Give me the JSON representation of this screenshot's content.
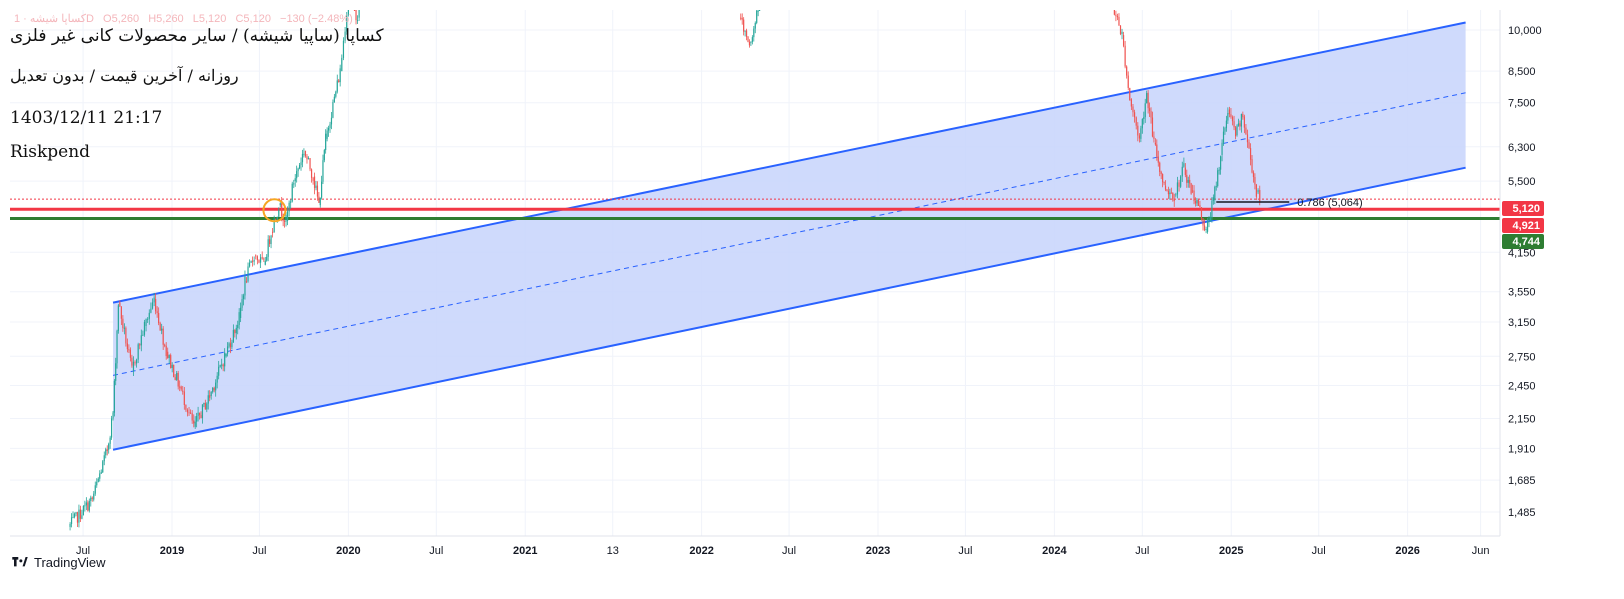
{
  "header": {
    "title": "کساپا (ساپیا شیشه) / سایر محصولات کانی غیر فلزی",
    "subtitle": "روزانه / آخرین قیمت / بدون تعدیل",
    "datetime": "1403/12/11 21:17",
    "author": "Riskpend"
  },
  "ohlc_bar": {
    "symbol": "کساپا شیشه · 1D",
    "open": "O5,260",
    "high": "H5,260",
    "low": "L5,120",
    "close": "C5,120",
    "change": "−130 (−2.48%)"
  },
  "branding": {
    "name": "TradingView"
  },
  "colors": {
    "bull": "#26a69a",
    "bear": "#ef5350",
    "channel_line": "#2962ff",
    "channel_fill": "#c7d4fb",
    "resistance_red": "#f23645",
    "support_green": "#2e7d32",
    "marker": "#f5a623"
  },
  "chart_data": {
    "type": "candlestick",
    "scale": "log",
    "y_ticks": [
      "10,000",
      "8,500",
      "7,500",
      "6,300",
      "5,500",
      "4,150",
      "3,550",
      "3,150",
      "2,750",
      "2,450",
      "2,150",
      "1,910",
      "1,685",
      "1,485"
    ],
    "x_ticks": [
      "Jul",
      "2019",
      "Jul",
      "2020",
      "Jul",
      "2021",
      "13",
      "2022",
      "Jul",
      "2023",
      "Jul",
      "2024",
      "Jul",
      "2025",
      "Jul",
      "2026",
      "Jun"
    ],
    "price_labels": [
      {
        "value": "5,120",
        "color": "#f23645"
      },
      {
        "value": "4,921",
        "color": "#f23645"
      },
      {
        "value": "4,744",
        "color": "#2e7d32"
      }
    ],
    "horizontal_levels": [
      {
        "price": 5120,
        "style": "dotted",
        "color": "#f23645"
      },
      {
        "price": 4921,
        "style": "solid",
        "color": "#f23645"
      },
      {
        "price": 4744,
        "style": "solid",
        "color": "#2e7d32"
      }
    ],
    "channel": {
      "start_date": "2018-09",
      "end_date": "2026-05",
      "upper_start": 3400,
      "upper_end": 10300,
      "lower_start": 1900,
      "lower_end": 5800,
      "mid_start": 2550,
      "mid_end": 7800
    },
    "fib_annotation": {
      "text": "0.786 (5,064)",
      "price": 5064,
      "from_date": "2024-12",
      "to_date": "2025-05"
    },
    "marker_circle": {
      "date": "2019-08",
      "price": 4900
    },
    "price_path": [
      [
        "2018-06-01",
        1400
      ],
      [
        "2018-07-20",
        1560
      ],
      [
        "2018-08-20",
        1900
      ],
      [
        "2018-09-01",
        2200
      ],
      [
        "2018-09-12",
        3400
      ],
      [
        "2018-10-10",
        2600
      ],
      [
        "2018-11-05",
        3100
      ],
      [
        "2018-11-25",
        3450
      ],
      [
        "2018-12-20",
        2800
      ],
      [
        "2019-01-20",
        2400
      ],
      [
        "2019-02-15",
        2080
      ],
      [
        "2019-03-20",
        2350
      ],
      [
        "2019-04-20",
        2750
      ],
      [
        "2019-05-20",
        3200
      ],
      [
        "2019-06-01",
        3700
      ],
      [
        "2019-06-20",
        4100
      ],
      [
        "2019-07-10",
        3950
      ],
      [
        "2019-07-25",
        4500
      ],
      [
        "2019-08-10",
        5000
      ],
      [
        "2019-08-25",
        4700
      ],
      [
        "2019-09-10",
        5500
      ],
      [
        "2019-10-01",
        6200
      ],
      [
        "2019-10-20",
        5600
      ],
      [
        "2019-11-01",
        5000
      ],
      [
        "2019-11-15",
        6500
      ],
      [
        "2019-12-15",
        8500
      ],
      [
        "2020-01-01",
        11500
      ],
      [
        "2020-01-20",
        10500
      ],
      [
        "2020-02-05",
        12500
      ],
      [
        "2022-03-20",
        10500
      ],
      [
        "2022-04-10",
        9500
      ],
      [
        "2022-05-01",
        11000
      ],
      [
        "2024-05-01",
        11000
      ],
      [
        "2024-05-20",
        9800
      ],
      [
        "2024-06-05",
        7600
      ],
      [
        "2024-06-25",
        6500
      ],
      [
        "2024-07-10",
        7800
      ],
      [
        "2024-07-25",
        6400
      ],
      [
        "2024-08-15",
        5400
      ],
      [
        "2024-09-05",
        5200
      ],
      [
        "2024-09-25",
        5800
      ],
      [
        "2024-10-10",
        5300
      ],
      [
        "2024-10-25",
        5000
      ],
      [
        "2024-11-10",
        4500
      ],
      [
        "2024-11-25",
        5100
      ],
      [
        "2024-12-10",
        6100
      ],
      [
        "2024-12-25",
        7300
      ],
      [
        "2025-01-10",
        6600
      ],
      [
        "2025-01-25",
        7100
      ],
      [
        "2025-02-10",
        6000
      ],
      [
        "2025-02-22",
        5260
      ],
      [
        "2025-03-01",
        5120
      ]
    ]
  }
}
